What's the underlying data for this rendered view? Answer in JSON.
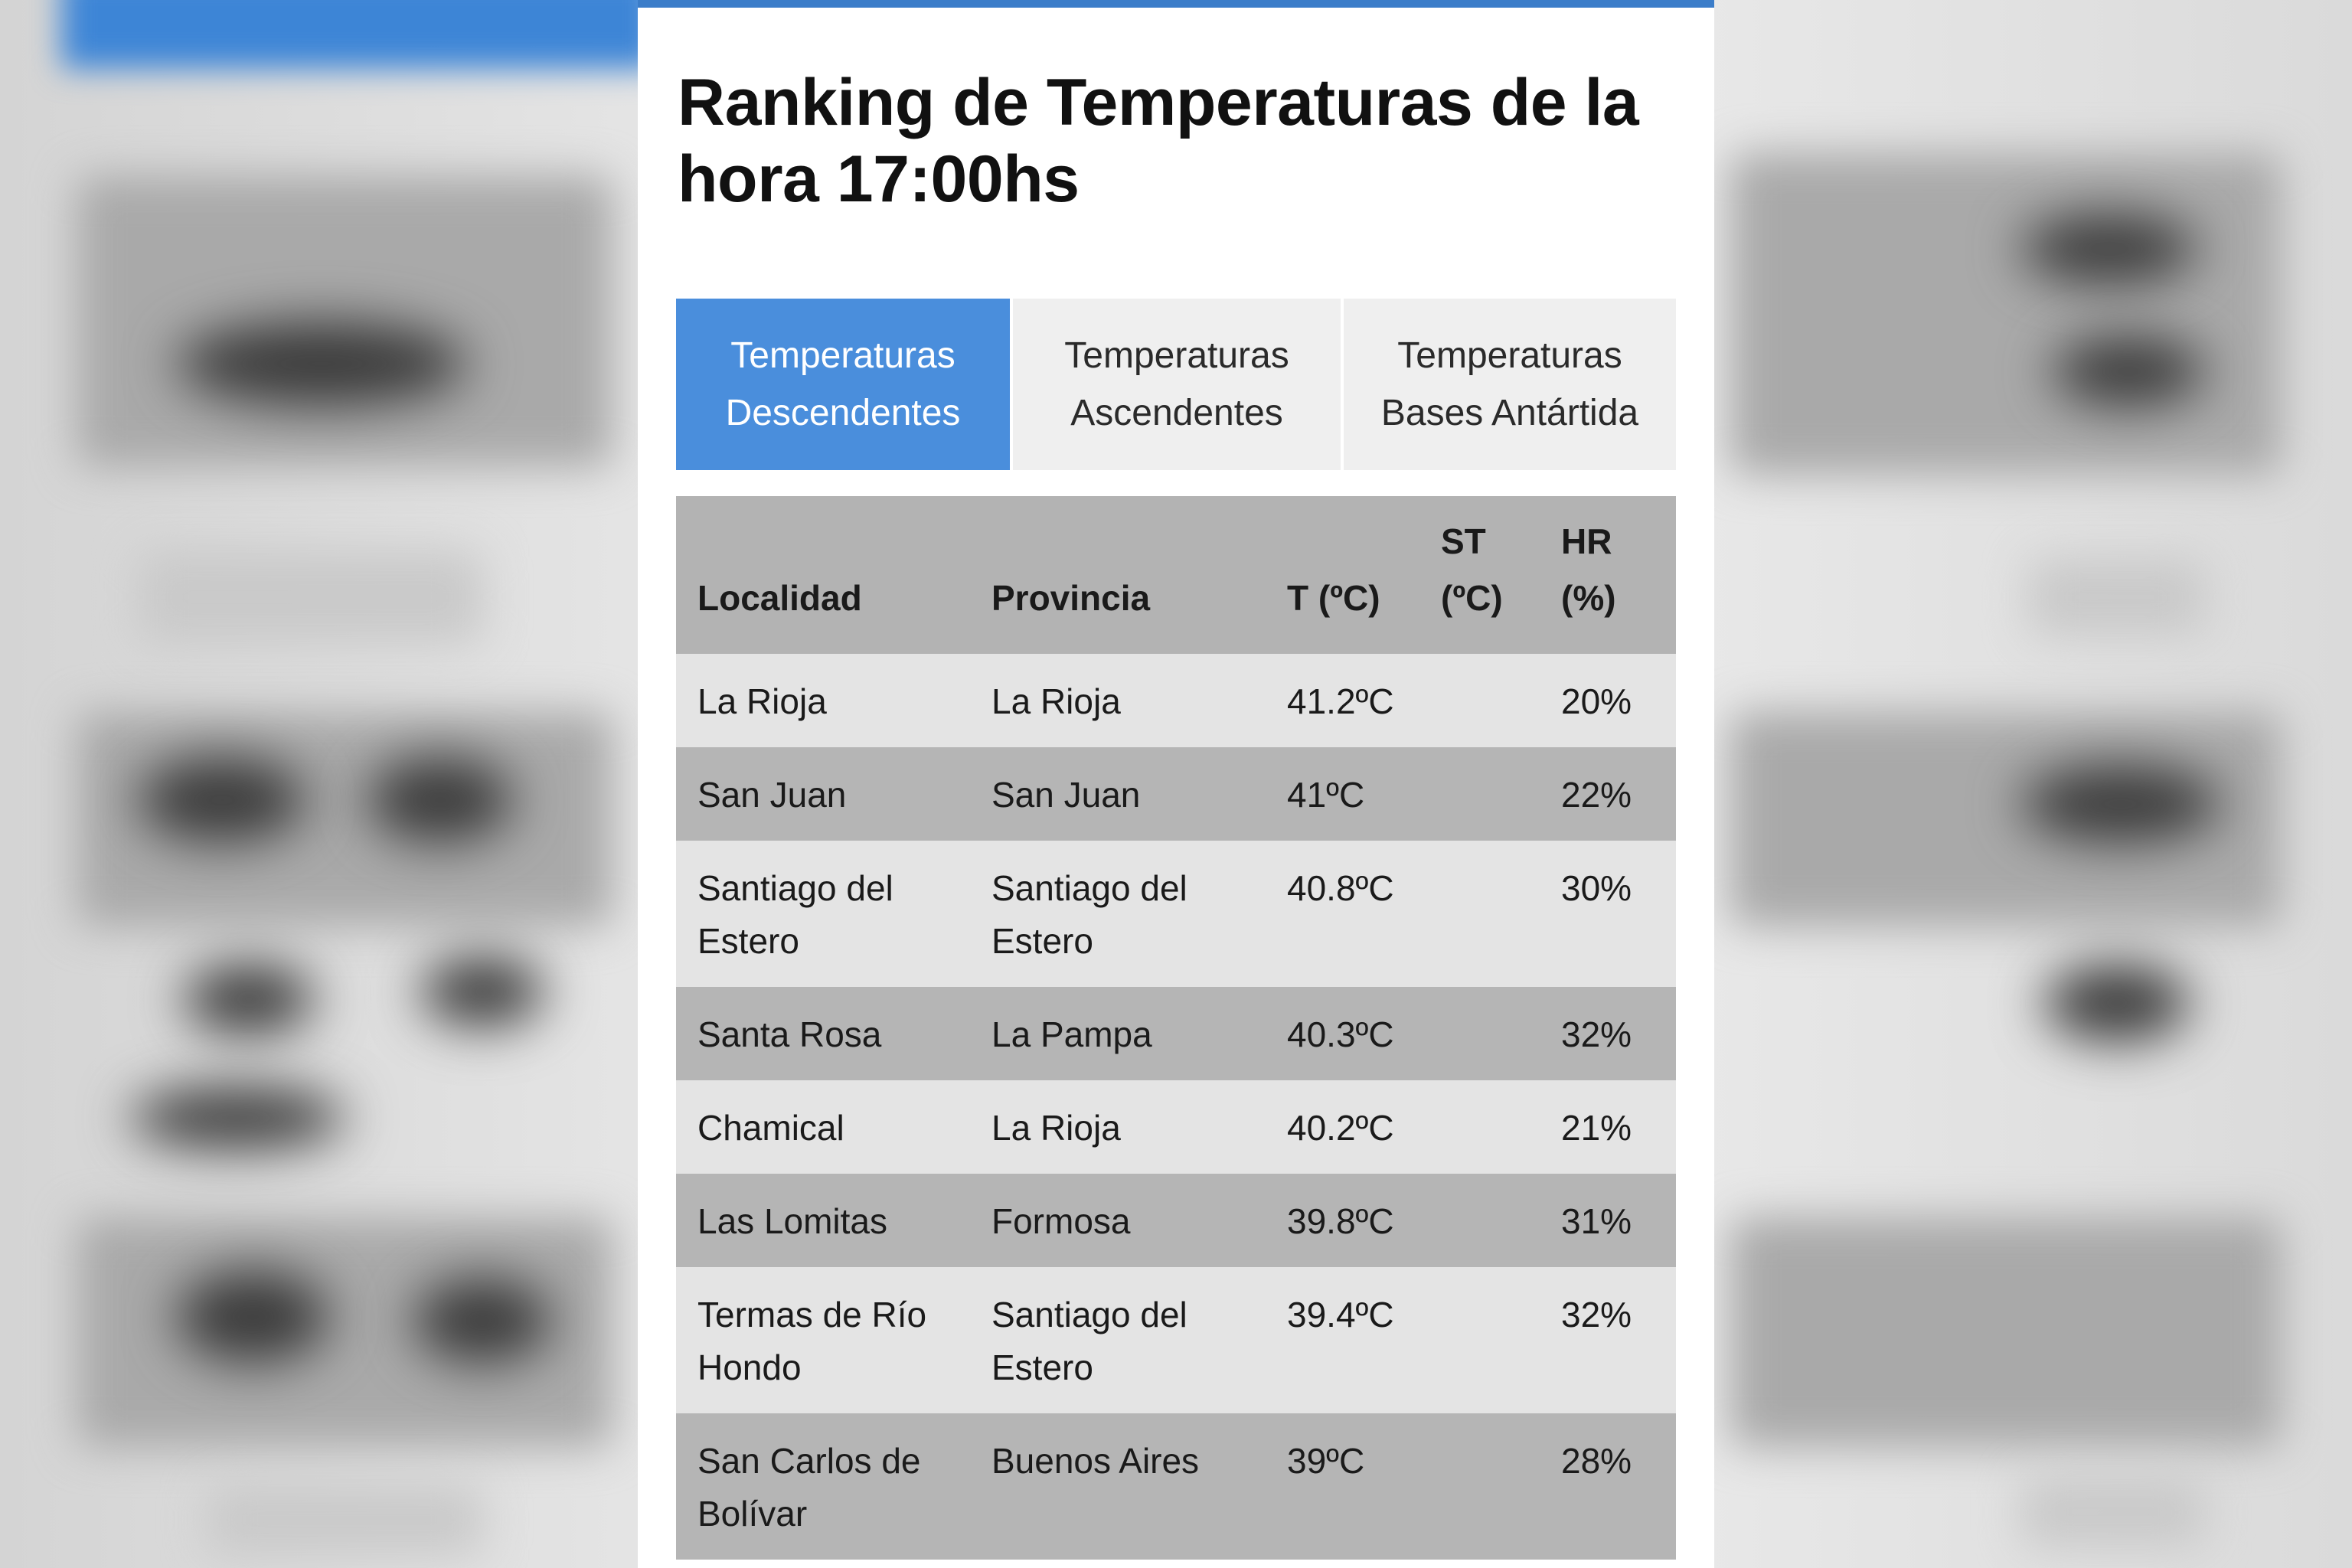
{
  "title": "Ranking de Temperaturas de la hora 17:00hs",
  "tabs": [
    {
      "label": "Temperaturas\nDescendentes",
      "active": true
    },
    {
      "label": "Temperaturas\nAscendentes",
      "active": false
    },
    {
      "label": "Temperaturas\nBases Antártida",
      "active": false
    }
  ],
  "table": {
    "headers": {
      "localidad": "Localidad",
      "provincia": "Provincia",
      "t": "T (ºC)",
      "st": "ST\n(ºC)",
      "hr": "HR\n(%)"
    },
    "rows": [
      {
        "localidad": "La Rioja",
        "provincia": "La Rioja",
        "t": "41.2ºC",
        "st": "",
        "hr": "20%"
      },
      {
        "localidad": "San Juan",
        "provincia": "San Juan",
        "t": "41ºC",
        "st": "",
        "hr": "22%"
      },
      {
        "localidad": "Santiago del Estero",
        "provincia": "Santiago del Estero",
        "t": "40.8ºC",
        "st": "",
        "hr": "30%"
      },
      {
        "localidad": "Santa Rosa",
        "provincia": "La Pampa",
        "t": "40.3ºC",
        "st": "",
        "hr": "32%"
      },
      {
        "localidad": "Chamical",
        "provincia": "La Rioja",
        "t": "40.2ºC",
        "st": "",
        "hr": "21%"
      },
      {
        "localidad": "Las Lomitas",
        "provincia": "Formosa",
        "t": "39.8ºC",
        "st": "",
        "hr": "31%"
      },
      {
        "localidad": "Termas de Río Hondo",
        "provincia": "Santiago del Estero",
        "t": "39.4ºC",
        "st": "",
        "hr": "32%"
      },
      {
        "localidad": "San Carlos de Bolívar",
        "provincia": "Buenos Aires",
        "t": "39ºC",
        "st": "",
        "hr": "28%"
      }
    ]
  },
  "colors": {
    "accent": "#3b7dc9",
    "active_tab": "#4a8edc",
    "row_light": "#e4e4e4",
    "row_dark": "#b5b5b5",
    "header_bg": "#b3b3b3"
  }
}
